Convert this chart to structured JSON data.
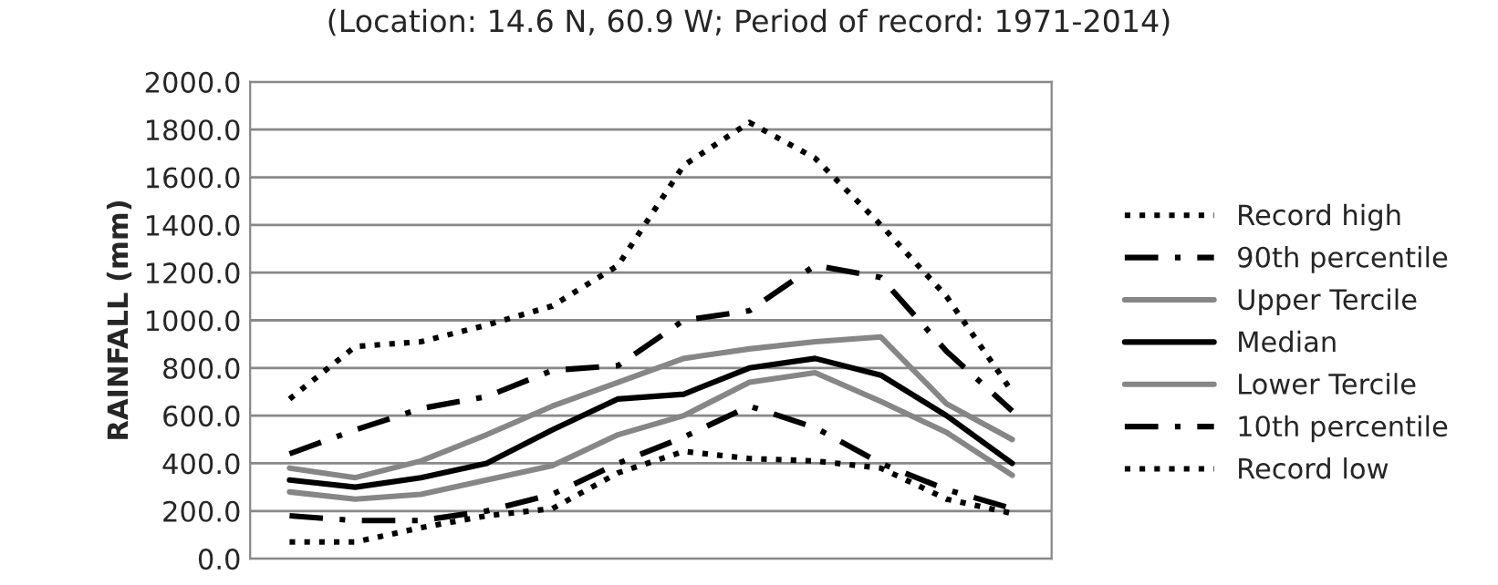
{
  "chart_data": {
    "type": "line",
    "title": "(Location: 14.6 N, 60.9 W; Period of record: 1971-2014)",
    "ylabel": "RAINFALL (mm)",
    "categories": [
      null,
      null,
      null,
      null,
      null,
      null,
      null,
      null,
      null,
      null,
      null,
      null
    ],
    "series": [
      {
        "name": "Record high",
        "color": "#000000",
        "line_style": "dotted",
        "values": [
          670,
          890,
          910,
          980,
          1060,
          1230,
          1650,
          1830,
          1680,
          1400,
          1100,
          700
        ]
      },
      {
        "name": "90th percentile",
        "color": "#000000",
        "line_style": "dashdot",
        "values": [
          440,
          540,
          630,
          680,
          790,
          810,
          1000,
          1040,
          1230,
          1180,
          870,
          620
        ]
      },
      {
        "name": "Upper Tercile",
        "color": "#868686",
        "line_style": "solid",
        "values": [
          380,
          340,
          410,
          520,
          640,
          740,
          840,
          880,
          910,
          930,
          650,
          500
        ]
      },
      {
        "name": "Median",
        "color": "#000000",
        "line_style": "solid",
        "values": [
          330,
          300,
          340,
          400,
          540,
          670,
          690,
          800,
          840,
          770,
          600,
          400
        ]
      },
      {
        "name": "Lower Tercile",
        "color": "#868686",
        "line_style": "solid",
        "values": [
          280,
          250,
          270,
          330,
          390,
          520,
          600,
          740,
          780,
          660,
          530,
          350
        ]
      },
      {
        "name": "10th percentile",
        "color": "#000000",
        "line_style": "dashdot",
        "values": [
          180,
          160,
          160,
          200,
          270,
          400,
          510,
          640,
          550,
          400,
          290,
          210
        ]
      },
      {
        "name": "Record low",
        "color": "#000000",
        "line_style": "dotted",
        "values": [
          70,
          70,
          130,
          180,
          210,
          360,
          450,
          420,
          410,
          380,
          250,
          190
        ]
      }
    ],
    "ylim": [
      0,
      2000
    ],
    "yticks": [
      {
        "value": 0,
        "label": "0.0"
      },
      {
        "value": 200,
        "label": "200.0"
      },
      {
        "value": 400,
        "label": "400.0"
      },
      {
        "value": 600,
        "label": "600.0"
      },
      {
        "value": 800,
        "label": "800.0"
      },
      {
        "value": 1000,
        "label": "1000.0"
      },
      {
        "value": 1200,
        "label": "1200.0"
      },
      {
        "value": 1400,
        "label": "1400.0"
      },
      {
        "value": 1600,
        "label": "1600.0"
      },
      {
        "value": 1800,
        "label": "1800.0"
      },
      {
        "value": 2000,
        "label": "2000.0"
      }
    ],
    "grid": "y",
    "legend": "right",
    "tick_labels": "y"
  }
}
